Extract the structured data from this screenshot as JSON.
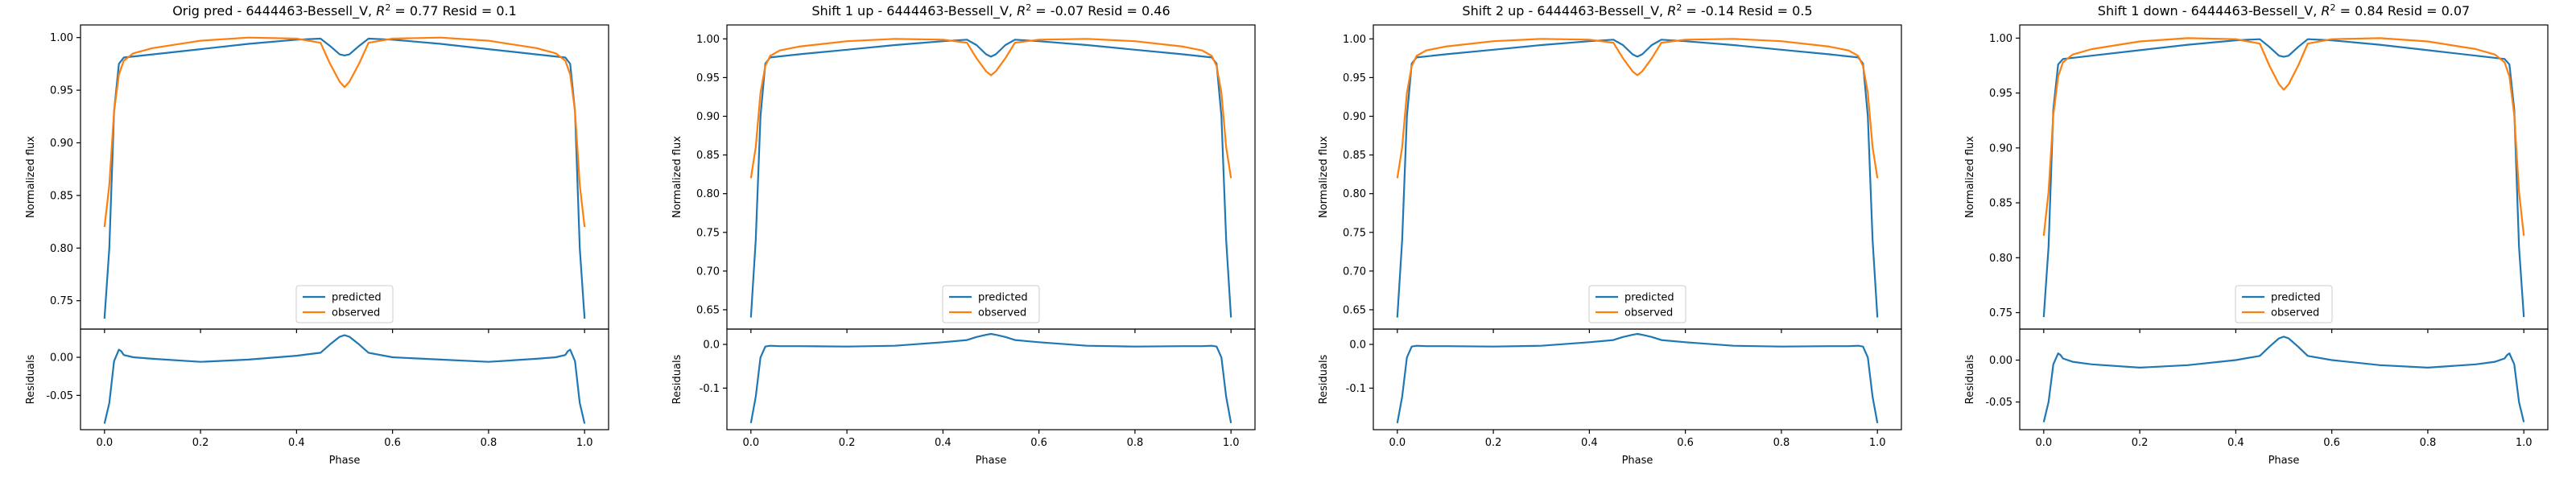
{
  "colors": {
    "predicted": "#1f77b4",
    "observed": "#ff7f0e"
  },
  "legend": [
    "predicted",
    "observed"
  ],
  "axis_labels": {
    "x": "Phase",
    "top_y": "Normalized flux",
    "bottom_y": "Residuals"
  },
  "chart_data": [
    {
      "type": "line",
      "title_main": "Orig pred - 6444463-Bessell_V, ",
      "title_r2": "= 0.77 Resid = 0.1",
      "xlabel": "Phase",
      "ylabel": "Normalized flux",
      "x_ticks": [
        0.0,
        0.2,
        0.4,
        0.6,
        0.8,
        1.0
      ],
      "top": {
        "ylim": [
          0.723,
          1.012
        ],
        "yticks": [
          0.75,
          0.8,
          0.85,
          0.9,
          0.95,
          1.0
        ],
        "series": [
          {
            "name": "predicted",
            "x": [
              0.0,
              0.01,
              0.02,
              0.03,
              0.04,
              0.1,
              0.2,
              0.3,
              0.4,
              0.45,
              0.47,
              0.49,
              0.5,
              0.51,
              0.53,
              0.55,
              0.6,
              0.7,
              0.8,
              0.9,
              0.96,
              0.97,
              0.98,
              0.99,
              1.0
            ],
            "y": [
              0.733,
              0.8,
              0.93,
              0.975,
              0.981,
              0.984,
              0.989,
              0.994,
              0.998,
              0.999,
              0.992,
              0.984,
              0.983,
              0.984,
              0.992,
              0.999,
              0.998,
              0.994,
              0.989,
              0.984,
              0.981,
              0.975,
              0.93,
              0.8,
              0.733
            ]
          },
          {
            "name": "observed",
            "x": [
              0.0,
              0.01,
              0.02,
              0.03,
              0.04,
              0.06,
              0.1,
              0.2,
              0.3,
              0.4,
              0.45,
              0.47,
              0.49,
              0.5,
              0.51,
              0.53,
              0.55,
              0.6,
              0.7,
              0.8,
              0.9,
              0.94,
              0.96,
              0.97,
              0.98,
              0.99,
              1.0
            ],
            "y": [
              0.82,
              0.86,
              0.93,
              0.965,
              0.978,
              0.985,
              0.99,
              0.997,
              1.0,
              0.999,
              0.995,
              0.975,
              0.958,
              0.953,
              0.958,
              0.975,
              0.995,
              0.999,
              1.0,
              0.997,
              0.99,
              0.985,
              0.978,
              0.965,
              0.93,
              0.86,
              0.82
            ]
          }
        ]
      },
      "bottom": {
        "ylabel": "Residuals",
        "ylim": [
          -0.095,
          0.037
        ],
        "yticks": [
          0.0,
          -0.05
        ],
        "series": [
          {
            "name": "residual",
            "x": [
              0.0,
              0.01,
              0.02,
              0.03,
              0.035,
              0.04,
              0.06,
              0.1,
              0.2,
              0.3,
              0.4,
              0.45,
              0.47,
              0.49,
              0.5,
              0.51,
              0.53,
              0.55,
              0.6,
              0.7,
              0.8,
              0.9,
              0.94,
              0.96,
              0.965,
              0.97,
              0.98,
              0.99,
              1.0
            ],
            "y": [
              -0.087,
              -0.06,
              -0.005,
              0.01,
              0.008,
              0.003,
              0.0,
              -0.002,
              -0.006,
              -0.003,
              0.002,
              0.006,
              0.017,
              0.027,
              0.029,
              0.027,
              0.017,
              0.006,
              0.0,
              -0.003,
              -0.006,
              -0.002,
              0.0,
              0.003,
              0.008,
              0.01,
              -0.005,
              -0.06,
              -0.087
            ]
          }
        ]
      }
    },
    {
      "type": "line",
      "title_main": "Shift 1 up - 6444463-Bessell_V, ",
      "title_r2": "= -0.07 Resid = 0.46",
      "xlabel": "Phase",
      "ylabel": "Normalized flux",
      "x_ticks": [
        0.0,
        0.2,
        0.4,
        0.6,
        0.8,
        1.0
      ],
      "top": {
        "ylim": [
          0.625,
          1.018
        ],
        "yticks": [
          0.65,
          0.7,
          0.75,
          0.8,
          0.85,
          0.9,
          0.95,
          1.0
        ],
        "series": [
          {
            "name": "predicted",
            "x": [
              0.0,
              0.01,
              0.02,
              0.03,
              0.04,
              0.1,
              0.2,
              0.3,
              0.4,
              0.45,
              0.47,
              0.49,
              0.5,
              0.51,
              0.53,
              0.55,
              0.6,
              0.7,
              0.8,
              0.9,
              0.96,
              0.97,
              0.98,
              0.99,
              1.0
            ],
            "y": [
              0.64,
              0.74,
              0.9,
              0.968,
              0.976,
              0.98,
              0.986,
              0.992,
              0.997,
              0.999,
              0.992,
              0.98,
              0.977,
              0.98,
              0.992,
              0.999,
              0.997,
              0.992,
              0.986,
              0.98,
              0.976,
              0.968,
              0.9,
              0.74,
              0.64
            ]
          },
          {
            "name": "observed",
            "x": [
              0.0,
              0.01,
              0.02,
              0.03,
              0.04,
              0.06,
              0.1,
              0.2,
              0.3,
              0.4,
              0.45,
              0.47,
              0.49,
              0.5,
              0.51,
              0.53,
              0.55,
              0.6,
              0.7,
              0.8,
              0.9,
              0.94,
              0.96,
              0.97,
              0.98,
              0.99,
              1.0
            ],
            "y": [
              0.82,
              0.86,
              0.93,
              0.965,
              0.978,
              0.985,
              0.99,
              0.997,
              1.0,
              0.999,
              0.995,
              0.975,
              0.958,
              0.953,
              0.958,
              0.975,
              0.995,
              0.999,
              1.0,
              0.997,
              0.99,
              0.985,
              0.978,
              0.965,
              0.93,
              0.86,
              0.82
            ]
          }
        ]
      },
      "bottom": {
        "ylabel": "Residuals",
        "ylim": [
          -0.195,
          0.035
        ],
        "yticks": [
          0.0,
          -0.1
        ],
        "series": [
          {
            "name": "residual",
            "x": [
              0.0,
              0.01,
              0.02,
              0.03,
              0.04,
              0.06,
              0.1,
              0.2,
              0.3,
              0.4,
              0.45,
              0.47,
              0.49,
              0.5,
              0.51,
              0.53,
              0.55,
              0.6,
              0.7,
              0.8,
              0.9,
              0.94,
              0.96,
              0.97,
              0.98,
              0.99,
              1.0
            ],
            "y": [
              -0.18,
              -0.12,
              -0.03,
              -0.005,
              -0.003,
              -0.004,
              -0.004,
              -0.005,
              -0.003,
              0.005,
              0.01,
              0.017,
              0.022,
              0.024,
              0.022,
              0.017,
              0.01,
              0.005,
              -0.003,
              -0.005,
              -0.004,
              -0.004,
              -0.003,
              -0.005,
              -0.03,
              -0.12,
              -0.18
            ]
          }
        ]
      }
    },
    {
      "type": "line",
      "title_main": "Shift 2 up - 6444463-Bessell_V, ",
      "title_r2": "= -0.14 Resid = 0.5",
      "xlabel": "Phase",
      "ylabel": "Normalized flux",
      "x_ticks": [
        0.0,
        0.2,
        0.4,
        0.6,
        0.8,
        1.0
      ],
      "top": {
        "ylim": [
          0.625,
          1.018
        ],
        "yticks": [
          0.65,
          0.7,
          0.75,
          0.8,
          0.85,
          0.9,
          0.95,
          1.0
        ],
        "series": [
          {
            "name": "predicted",
            "x": [
              0.0,
              0.01,
              0.02,
              0.03,
              0.04,
              0.1,
              0.2,
              0.3,
              0.4,
              0.45,
              0.47,
              0.49,
              0.5,
              0.51,
              0.53,
              0.55,
              0.6,
              0.7,
              0.8,
              0.9,
              0.96,
              0.97,
              0.98,
              0.99,
              1.0
            ],
            "y": [
              0.64,
              0.74,
              0.9,
              0.968,
              0.976,
              0.98,
              0.986,
              0.992,
              0.997,
              0.999,
              0.992,
              0.98,
              0.977,
              0.98,
              0.992,
              0.999,
              0.997,
              0.992,
              0.986,
              0.98,
              0.976,
              0.968,
              0.9,
              0.74,
              0.64
            ]
          },
          {
            "name": "observed",
            "x": [
              0.0,
              0.01,
              0.02,
              0.03,
              0.04,
              0.06,
              0.1,
              0.2,
              0.3,
              0.4,
              0.45,
              0.47,
              0.49,
              0.5,
              0.51,
              0.53,
              0.55,
              0.6,
              0.7,
              0.8,
              0.9,
              0.94,
              0.96,
              0.97,
              0.98,
              0.99,
              1.0
            ],
            "y": [
              0.82,
              0.86,
              0.93,
              0.965,
              0.978,
              0.985,
              0.99,
              0.997,
              1.0,
              0.999,
              0.995,
              0.975,
              0.958,
              0.953,
              0.958,
              0.975,
              0.995,
              0.999,
              1.0,
              0.997,
              0.99,
              0.985,
              0.978,
              0.965,
              0.93,
              0.86,
              0.82
            ]
          }
        ]
      },
      "bottom": {
        "ylabel": "Residuals",
        "ylim": [
          -0.195,
          0.035
        ],
        "yticks": [
          0.0,
          -0.1
        ],
        "series": [
          {
            "name": "residual",
            "x": [
              0.0,
              0.01,
              0.02,
              0.03,
              0.04,
              0.06,
              0.1,
              0.2,
              0.3,
              0.4,
              0.45,
              0.47,
              0.49,
              0.5,
              0.51,
              0.53,
              0.55,
              0.6,
              0.7,
              0.8,
              0.9,
              0.94,
              0.96,
              0.97,
              0.98,
              0.99,
              1.0
            ],
            "y": [
              -0.18,
              -0.12,
              -0.03,
              -0.005,
              -0.003,
              -0.004,
              -0.004,
              -0.005,
              -0.003,
              0.005,
              0.01,
              0.017,
              0.022,
              0.024,
              0.022,
              0.017,
              0.01,
              0.005,
              -0.003,
              -0.005,
              -0.004,
              -0.004,
              -0.003,
              -0.005,
              -0.03,
              -0.12,
              -0.18
            ]
          }
        ]
      }
    },
    {
      "type": "line",
      "title_main": "Shift 1 down - 6444463-Bessell_V, ",
      "title_r2": "= 0.84 Resid = 0.07",
      "xlabel": "Phase",
      "ylabel": "Normalized flux",
      "x_ticks": [
        0.0,
        0.2,
        0.4,
        0.6,
        0.8,
        1.0
      ],
      "top": {
        "ylim": [
          0.735,
          1.012
        ],
        "yticks": [
          0.75,
          0.8,
          0.85,
          0.9,
          0.95,
          1.0
        ],
        "series": [
          {
            "name": "predicted",
            "x": [
              0.0,
              0.01,
              0.02,
              0.03,
              0.04,
              0.1,
              0.2,
              0.3,
              0.4,
              0.45,
              0.47,
              0.49,
              0.5,
              0.51,
              0.53,
              0.55,
              0.6,
              0.7,
              0.8,
              0.9,
              0.96,
              0.97,
              0.98,
              0.99,
              1.0
            ],
            "y": [
              0.746,
              0.81,
              0.935,
              0.976,
              0.981,
              0.984,
              0.989,
              0.994,
              0.998,
              0.999,
              0.992,
              0.984,
              0.983,
              0.984,
              0.992,
              0.999,
              0.998,
              0.994,
              0.989,
              0.984,
              0.981,
              0.976,
              0.935,
              0.81,
              0.746
            ]
          },
          {
            "name": "observed",
            "x": [
              0.0,
              0.01,
              0.02,
              0.03,
              0.04,
              0.06,
              0.1,
              0.2,
              0.3,
              0.4,
              0.45,
              0.47,
              0.49,
              0.5,
              0.51,
              0.53,
              0.55,
              0.6,
              0.7,
              0.8,
              0.9,
              0.94,
              0.96,
              0.97,
              0.98,
              0.99,
              1.0
            ],
            "y": [
              0.82,
              0.86,
              0.93,
              0.965,
              0.978,
              0.985,
              0.99,
              0.997,
              1.0,
              0.999,
              0.995,
              0.975,
              0.958,
              0.953,
              0.958,
              0.975,
              0.995,
              0.999,
              1.0,
              0.997,
              0.99,
              0.985,
              0.978,
              0.965,
              0.93,
              0.86,
              0.82
            ]
          }
        ]
      },
      "bottom": {
        "ylabel": "Residuals",
        "ylim": [
          -0.083,
          0.037
        ],
        "yticks": [
          0.0,
          -0.05
        ],
        "series": [
          {
            "name": "residual",
            "x": [
              0.0,
              0.01,
              0.02,
              0.03,
              0.035,
              0.04,
              0.06,
              0.1,
              0.2,
              0.3,
              0.4,
              0.45,
              0.47,
              0.49,
              0.5,
              0.51,
              0.53,
              0.55,
              0.6,
              0.7,
              0.8,
              0.9,
              0.94,
              0.96,
              0.965,
              0.97,
              0.98,
              0.99,
              1.0
            ],
            "y": [
              -0.074,
              -0.05,
              -0.005,
              0.008,
              0.006,
              0.002,
              -0.002,
              -0.005,
              -0.009,
              -0.006,
              0.0,
              0.005,
              0.016,
              0.026,
              0.028,
              0.026,
              0.016,
              0.005,
              0.0,
              -0.006,
              -0.009,
              -0.005,
              -0.002,
              0.002,
              0.006,
              0.008,
              -0.005,
              -0.05,
              -0.074
            ]
          }
        ]
      }
    }
  ]
}
